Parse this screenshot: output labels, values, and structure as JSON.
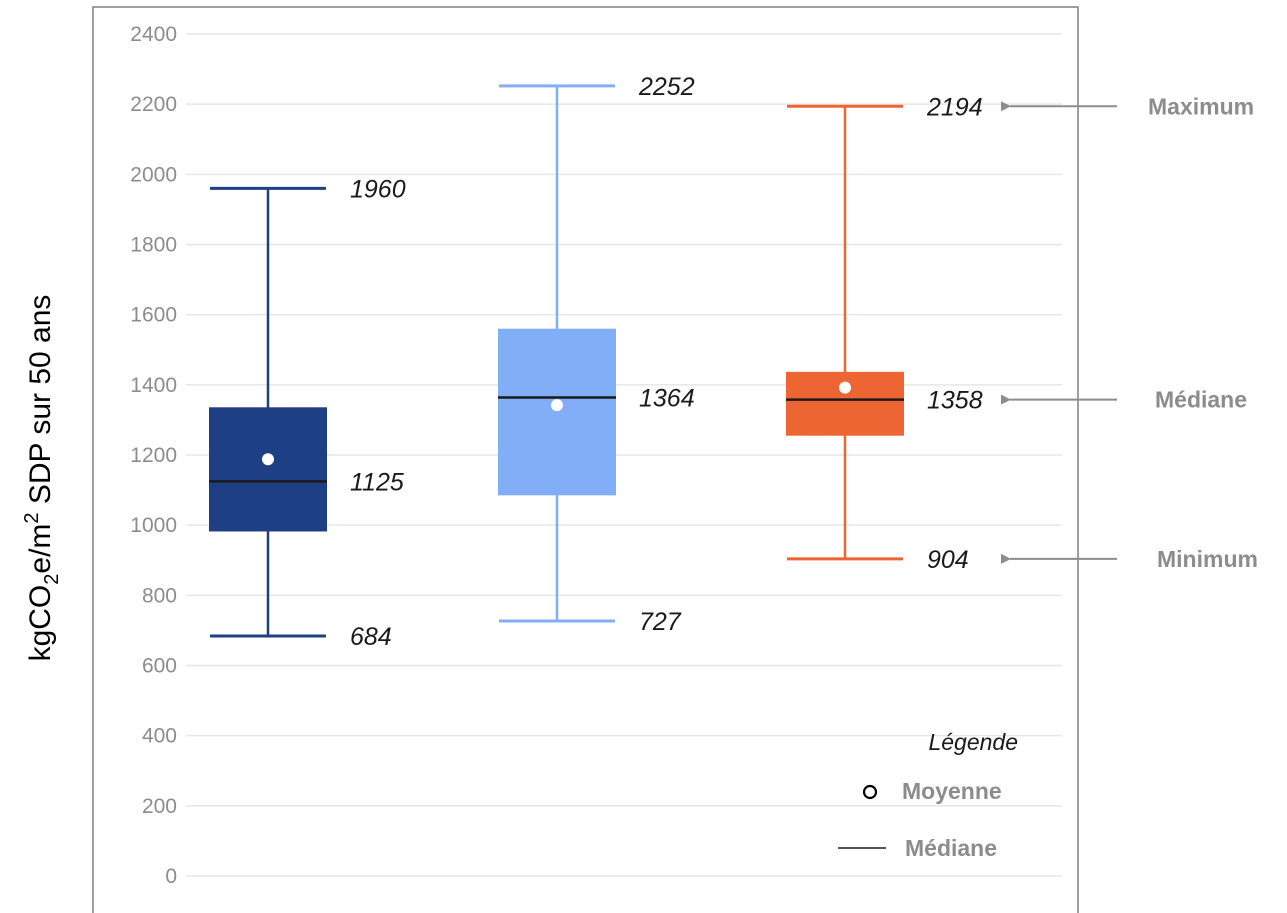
{
  "chart_data": {
    "type": "boxplot",
    "ylabel_parts": {
      "main": "kgCO",
      "sub1": "2",
      "mid": "e/m",
      "sup": "2",
      "tail": " SDP sur 50 ans"
    },
    "ylim": [
      0,
      2400
    ],
    "yticks": [
      "0",
      "200",
      "400",
      "600",
      "800",
      "1000",
      "1200",
      "1400",
      "1600",
      "1800",
      "2000",
      "2200",
      "2400"
    ],
    "grid": true,
    "boxes": [
      {
        "color": "#1f3f85",
        "min": 684,
        "q1": 982,
        "median": 1125,
        "q3": 1336,
        "max": 1960,
        "mean": 1188,
        "min_label": "684",
        "median_label": "1125",
        "max_label": "1960"
      },
      {
        "color": "#82aef7",
        "min": 727,
        "q1": 1085,
        "median": 1364,
        "q3": 1560,
        "max": 2252,
        "mean": 1342,
        "min_label": "727",
        "median_label": "1364",
        "max_label": "2252"
      },
      {
        "color": "#ee6534",
        "min": 904,
        "q1": 1255,
        "median": 1358,
        "q3": 1437,
        "max": 2194,
        "mean": 1392,
        "min_label": "904",
        "median_label": "1358",
        "max_label": "2194"
      }
    ],
    "annotations": {
      "maximum": "Maximum",
      "median": "Médiane",
      "minimum": "Minimum"
    },
    "legend": {
      "title": "Légende",
      "mean": "Moyenne",
      "median": "Médiane",
      "position": "bottom-right"
    }
  }
}
